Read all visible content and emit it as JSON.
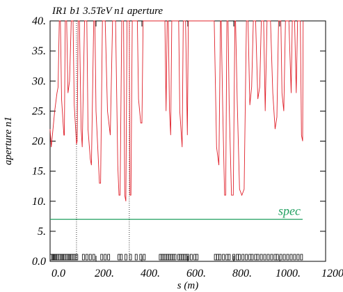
{
  "chart_data": {
    "type": "line",
    "title": "IR1 b1 3.5TeV n1 aperture",
    "xlabel": "s (m)",
    "ylabel": "aperture n1",
    "xlim": [
      0,
      1200
    ],
    "ylim": [
      0,
      40
    ],
    "xticks": [
      {
        "value": 0,
        "label": "0.0"
      },
      {
        "value": 200,
        "label": "200."
      },
      {
        "value": 400,
        "label": "400."
      },
      {
        "value": 600,
        "label": "600."
      },
      {
        "value": 800,
        "label": "800."
      },
      {
        "value": 1000,
        "label": "1000."
      },
      {
        "value": 1200,
        "label": "1200."
      }
    ],
    "yticks": [
      {
        "value": 0,
        "label": "0.0"
      },
      {
        "value": 5,
        "label": "5."
      },
      {
        "value": 10,
        "label": "10."
      },
      {
        "value": 15,
        "label": "15."
      },
      {
        "value": 20,
        "label": "20."
      },
      {
        "value": 25,
        "label": "25."
      },
      {
        "value": 30,
        "label": "30."
      },
      {
        "value": 35,
        "label": "35."
      },
      {
        "value": 40,
        "label": "40."
      }
    ],
    "series": [
      {
        "color": "#e0202a",
        "x": [
          0,
          5,
          20,
          30,
          35,
          40,
          45,
          50,
          60,
          62,
          66,
          72,
          78,
          85,
          92,
          100,
          105,
          115,
          118,
          122,
          128,
          135,
          140,
          150,
          160,
          165,
          175,
          180,
          190,
          195,
          200,
          210,
          215,
          220,
          228,
          240,
          250,
          262,
          272,
          285,
          295,
          300,
          305,
          312,
          320,
          325,
          330,
          335,
          345,
          348,
          352,
          358,
          380,
          385,
          395,
          400,
          405,
          500,
          505,
          510,
          515,
          520,
          525,
          530,
          560,
          565,
          575,
          580,
          590,
          598,
          602,
          715,
          725,
          735,
          742,
          745,
          752,
          760,
          765,
          770,
          775,
          780,
          790,
          798,
          805,
          808,
          815,
          825,
          835,
          845,
          855,
          862,
          870,
          878,
          885,
          895,
          905,
          913,
          920,
          930,
          937,
          945,
          960,
          970,
          980,
          988,
          995,
          1005,
          1010,
          1018,
          1025,
          1040,
          1050,
          1055,
          1065,
          1072,
          1078,
          1090,
          1095,
          1100,
          1102
        ],
        "values": [
          22,
          19,
          25,
          28,
          29,
          40,
          40,
          27,
          21,
          21,
          40,
          40,
          28,
          30,
          40,
          40,
          26,
          19.5,
          20,
          40,
          40,
          22,
          19,
          40,
          40,
          22,
          17,
          16,
          40,
          40,
          25,
          17,
          13,
          13,
          40,
          40,
          25,
          21,
          40,
          40,
          16,
          11,
          11,
          40,
          40,
          11,
          10,
          40,
          40,
          11,
          11,
          40,
          40,
          27,
          23,
          23,
          40,
          40,
          25,
          40,
          40,
          25,
          21,
          40,
          40,
          25,
          19,
          40,
          40,
          21,
          40,
          40,
          19,
          16,
          40,
          40,
          25,
          11,
          11,
          40,
          40,
          26,
          11,
          11,
          40,
          40,
          27,
          12,
          11,
          12,
          40,
          40,
          26,
          29,
          40,
          40,
          27,
          29,
          40,
          40,
          25,
          40,
          40,
          28,
          22,
          24,
          40,
          40,
          28,
          25,
          40,
          40,
          28,
          40,
          40,
          28,
          40,
          40,
          21,
          20,
          40
        ]
      },
      {
        "name": "spec",
        "color": "#20a060",
        "x": [
          0,
          1100
        ],
        "values": [
          7,
          7
        ]
      }
    ],
    "vlines": [
      115,
      345
    ],
    "elements": [
      5,
      12,
      18,
      25,
      32,
      40,
      48,
      55,
      62,
      70,
      78,
      85,
      92,
      100,
      108,
      116,
      145,
      160,
      175,
      190,
      225,
      240,
      255,
      300,
      310,
      330,
      350,
      375,
      395,
      410,
      480,
      488,
      496,
      504,
      512,
      520,
      528,
      536,
      544,
      560,
      568,
      576,
      584,
      592,
      600,
      615,
      630,
      640,
      720,
      730,
      740,
      755,
      770,
      780,
      800,
      815,
      825,
      840,
      855,
      870,
      880,
      895,
      905,
      920,
      935,
      950,
      965,
      980,
      990,
      1005,
      1020,
      1035,
      1050,
      1065,
      1080,
      1095
    ]
  }
}
